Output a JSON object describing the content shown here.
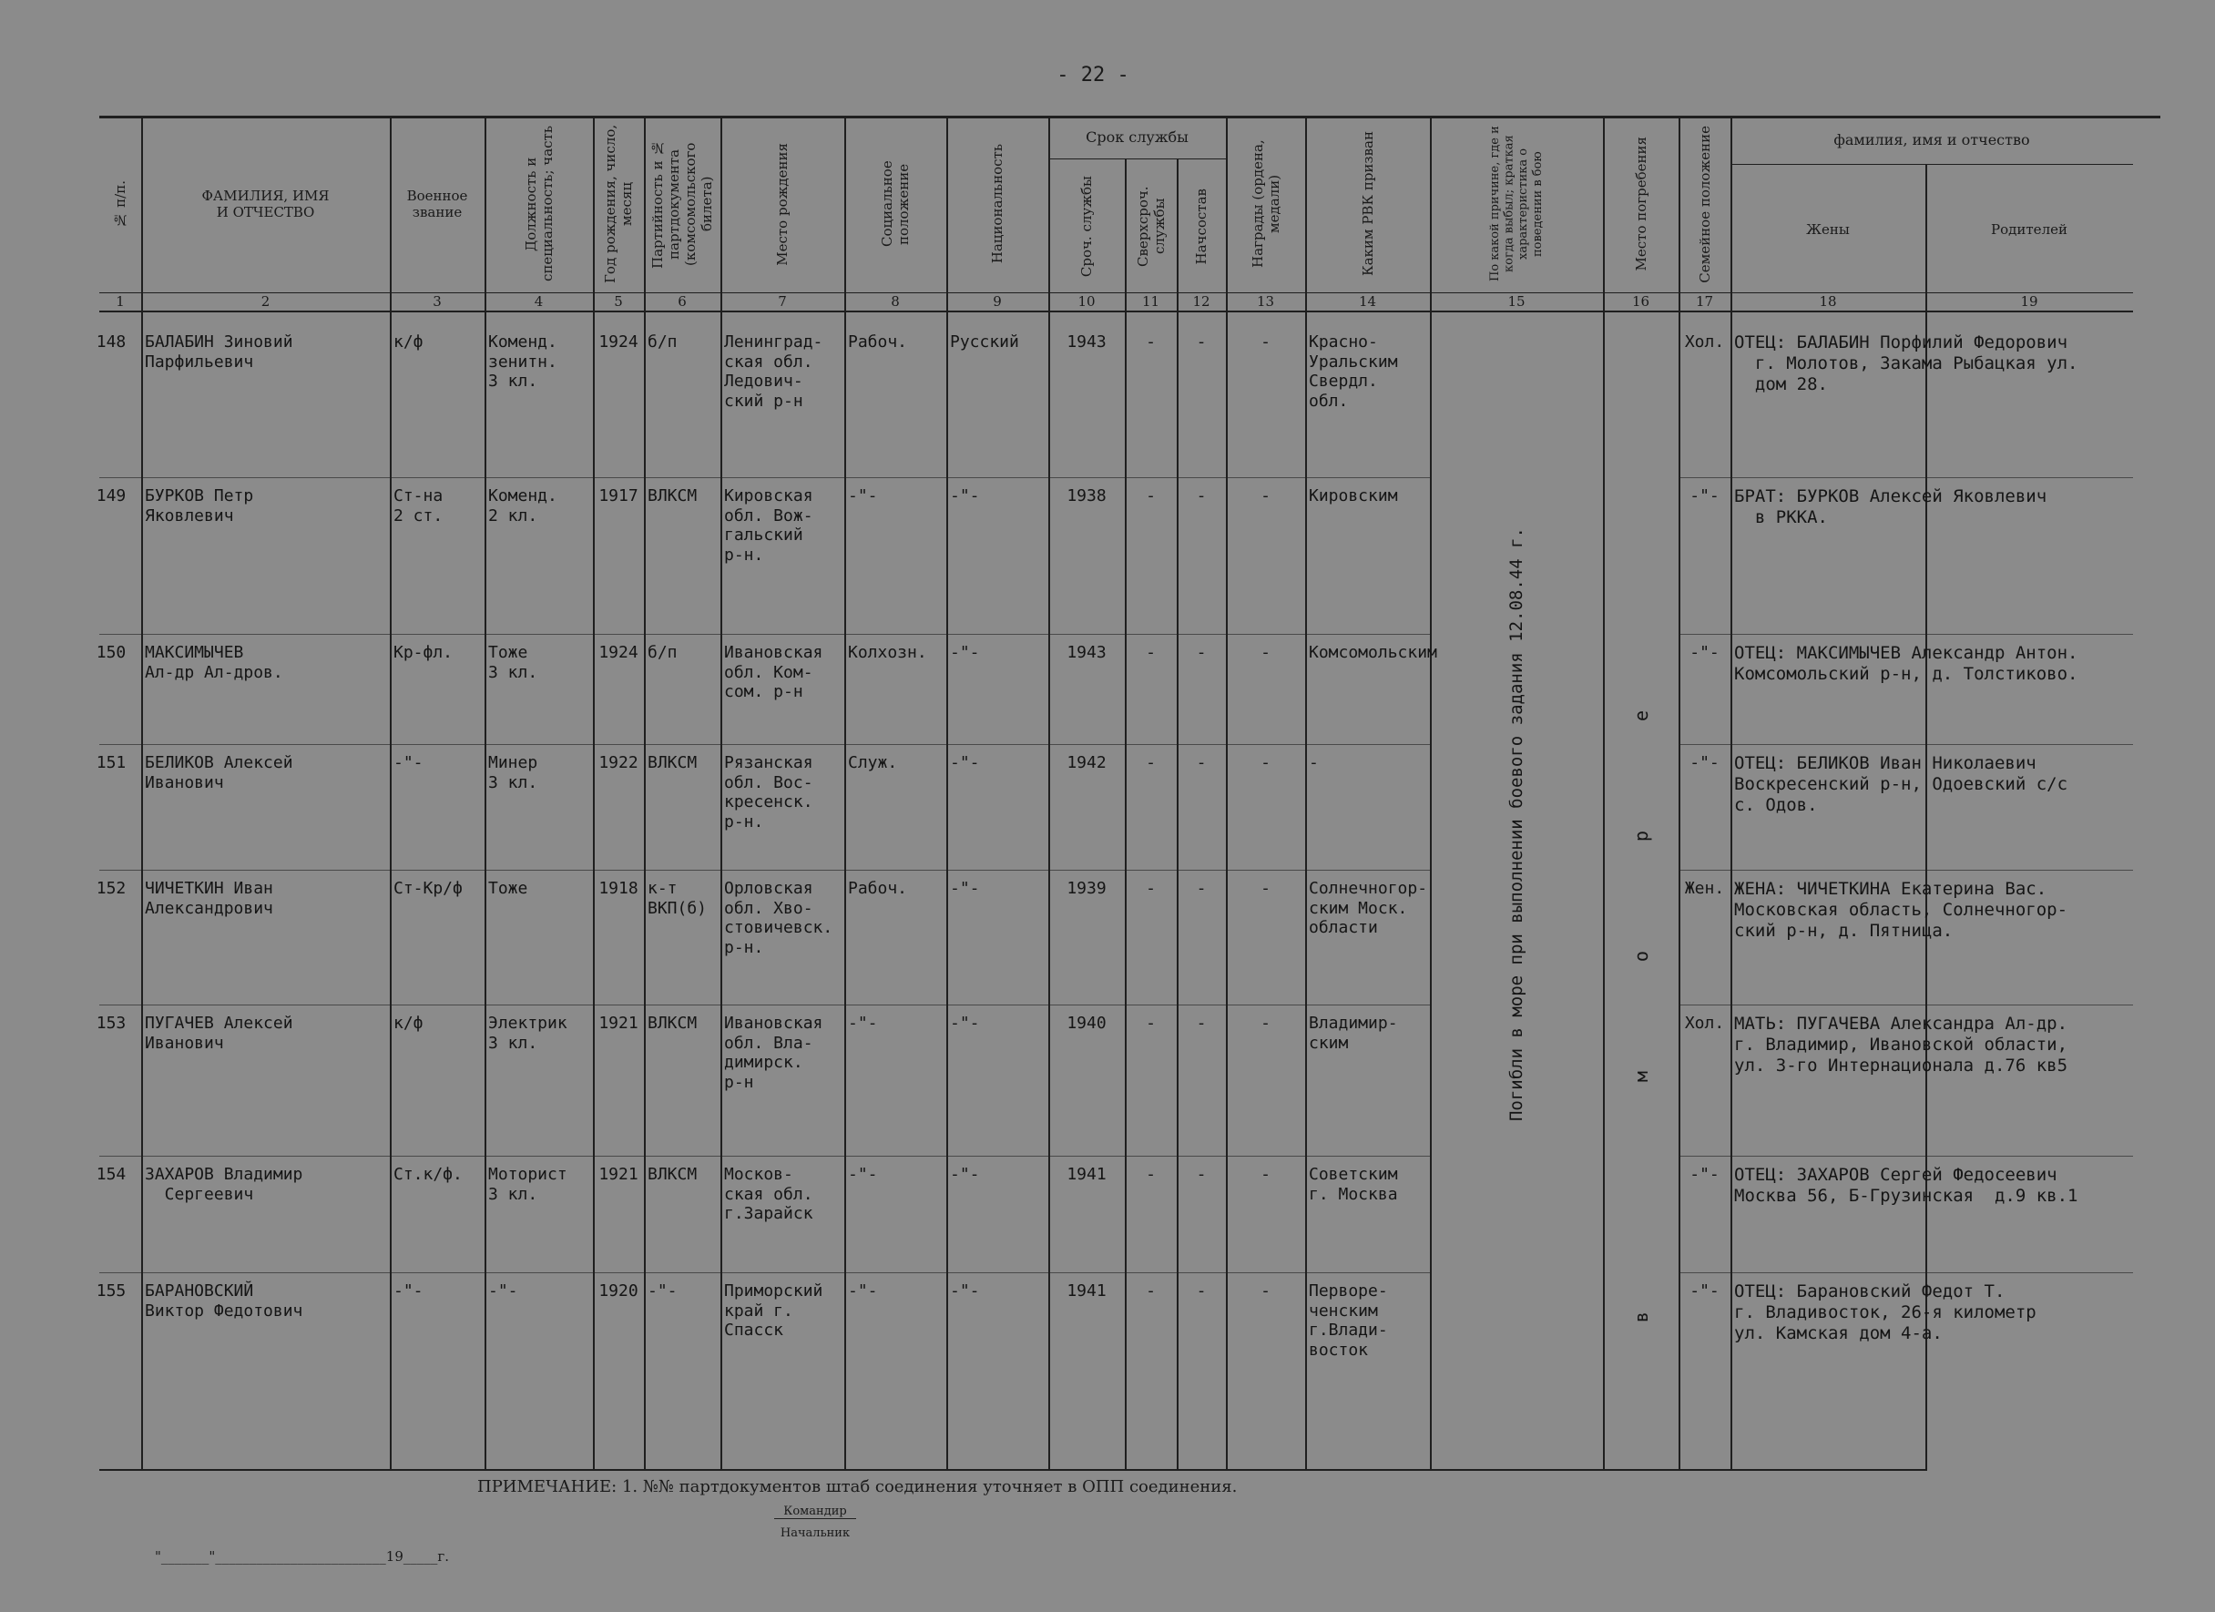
{
  "page_number": "- 22 -",
  "header": {
    "columns": [
      {
        "number": "1",
        "label": "№ п/п."
      },
      {
        "number": "2",
        "label": "ФАМИЛИЯ, ИМЯ\nИ ОТЧЕСТВО"
      },
      {
        "number": "3",
        "label": "Военное\nзвание"
      },
      {
        "number": "4",
        "label": "Должность и специальность; часть"
      },
      {
        "number": "5",
        "label": "Год рождения, число, месяц"
      },
      {
        "number": "6",
        "label": "Партийность и № партдокумента (комсомольского билета)"
      },
      {
        "number": "7",
        "label": "Место рождения"
      },
      {
        "number": "8",
        "label": "Социальное положение"
      },
      {
        "number": "9",
        "label": "Национальность"
      },
      {
        "number": "10",
        "label": "Сроч. службы"
      },
      {
        "number": "11",
        "label": "Сверхсроч. службы"
      },
      {
        "number": "12",
        "label": "Начсостав"
      },
      {
        "number": "13",
        "label": "Награды (ордена, медали)"
      },
      {
        "number": "14",
        "label": "Каким РВК призван"
      },
      {
        "number": "15",
        "label": "По какой причине, где и когда выбыл; краткая характеристика о поведении в бою"
      },
      {
        "number": "16",
        "label": "Место погребения"
      },
      {
        "number": "17",
        "label": "Семейное положение"
      },
      {
        "number": "18",
        "label": "Жены"
      },
      {
        "number": "19",
        "label": "Родителей"
      }
    ],
    "groups": [
      {
        "label": "Срок службы"
      },
      {
        "label": "фамилия, имя и отчество"
      }
    ]
  },
  "rows": [
    [
      "148",
      "БАЛАБИН Зиновий\nПарфильевич",
      "к/ф",
      "Коменд.\nзенитн.\n3 кл.",
      "1924",
      "б/п",
      "Ленинград-\nская обл.\nЛедович-\nский р-н",
      "Рабоч.",
      "Русский",
      "1943",
      "-",
      "-",
      "-",
      "Красно-\nУральским\nСвердл.\nобл.",
      "Хол.",
      "ОТЕЦ: БАЛАБИН Порфилий Федорович\n  г. Молотов, Закама Рыбацкая ул.\n  дом 28."
    ],
    [
      "149",
      "БУРКОВ Петр\nЯковлевич",
      "Ст-на\n2 ст.",
      "Коменд.\n2 кл.",
      "1917",
      "ВЛКСМ",
      "Кировская\nобл. Вож-\nгальский\nр-н.",
      "-\"-",
      "-\"-",
      "1938",
      "-",
      "-",
      "-",
      "Кировским",
      "-\"-",
      "БРАТ: БУРКОВ Алексей Яковлевич\n  в РККА."
    ],
    [
      "150",
      "МАКСИМЫЧЕВ\nАл-др Ал-дров.",
      "Кр-фл.",
      "Тоже\n3 кл.",
      "1924",
      "б/п",
      "Ивановская\nобл. Ком-\nсом. р-н",
      "Колхозн.",
      "-\"-",
      "1943",
      "-",
      "-",
      "-",
      "Комсомольским",
      "-\"-",
      "ОТЕЦ: МАКСИМЫЧЕВ Александр Антон.\nКомсомольский р-н, д. Толстиково."
    ],
    [
      "151",
      "БЕЛИКОВ Алексей\nИванович",
      "-\"-",
      "Минер\n3 кл.",
      "1922",
      "ВЛКСМ",
      "Рязанская\nобл. Вос-\nкресенск.\nр-н.",
      "Служ.",
      "-\"-",
      "1942",
      "-",
      "-",
      "-",
      "-",
      "-\"-",
      "ОТЕЦ: БЕЛИКОВ Иван Николаевич\nВоскресенский р-н, Одоевский с/с\nс. Одов."
    ],
    [
      "152",
      "ЧИЧЕТКИН Иван\nАлександрович",
      "Ст-Кр/ф",
      "Тоже",
      "1918",
      "к-т\nВКП(б)",
      "Орловская\nобл. Хво-\nстовичевск.\nр-н.",
      "Рабоч.",
      "-\"-",
      "1939",
      "-",
      "-",
      "-",
      "Солнечногор-\nским Моск.\nобласти",
      "Жен.",
      "ЖЕНА: ЧИЧЕТКИНА Екатерина Вас.\nМосковская область, Солнечногор-\nский р-н, д. Пятница."
    ],
    [
      "153",
      "ПУГАЧЕВ Алексей\nИванович",
      "к/ф",
      "Электрик\n3 кл.",
      "1921",
      "ВЛКСМ",
      "Ивановская\nобл. Вла-\nдимирск.\nр-н",
      "-\"-",
      "-\"-",
      "1940",
      "-",
      "-",
      "-",
      "Владимир-\nским",
      "Хол.",
      "МАТЬ: ПУГАЧЕВА Александра Ал-др.\nг. Владимир, Ивановской области,\nул. 3-го Интернационала д.76 кв5"
    ],
    [
      "154",
      "ЗАХАРОВ Владимир\n  Сергеевич",
      "Ст.к/ф.",
      "Моторист\n3 кл.",
      "1921",
      "ВЛКСМ",
      "Москов-\nская обл.\nг.Зарайск",
      "-\"-",
      "-\"-",
      "1941",
      "-",
      "-",
      "-",
      "Советским\nг. Москва",
      "-\"-",
      "ОТЕЦ: ЗАХАРОВ Сергей Федосеевич\nМосква 56, Б-Грузинская  д.9 кв.1"
    ],
    [
      "155",
      "БАРАНОВСКИЙ\nВиктор Федотович",
      "-\"-",
      "-\"-",
      "1920",
      "-\"-",
      "Приморский\nкрай г.\nСпасск",
      "-\"-",
      "-\"-",
      "1941",
      "-",
      "-",
      "-",
      "Первоpe-\nченским\nг.Влади-\nвосток",
      "-\"-",
      "ОТЕЦ: Барановский Федот Т.\nг. Владивосток, 26-я километр\nул. Камская дом 4-а."
    ]
  ],
  "merged": {
    "cause": "Погибли в море при выполнении боевого задания 12.08.44 г.",
    "burial": "в море"
  },
  "footer": {
    "note": "ПРИМЕЧАНИЕ: 1. №№ партдокументов штаб соединения уточняет в ОПП соединения.",
    "signer_1": "Командир",
    "signer_2": "Начальник",
    "date_line": "\"_______\"_________________________19_____г."
  }
}
